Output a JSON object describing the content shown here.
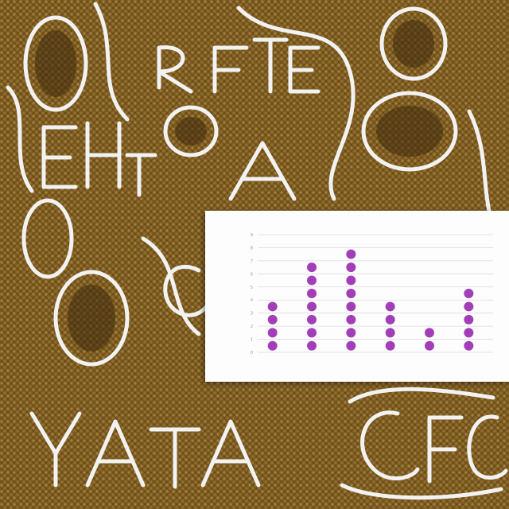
{
  "chart_data": {
    "type": "scatter",
    "style": "dot-plot",
    "title": "",
    "xlabel": "",
    "ylabel": "",
    "categories": [
      "",
      "",
      "",
      "",
      "",
      ""
    ],
    "values": [
      4,
      7,
      8,
      4,
      2,
      5
    ],
    "ylim": [
      0,
      9
    ],
    "yticks": [
      0,
      1,
      2,
      3,
      4,
      5,
      6,
      7,
      8,
      9
    ],
    "grid": true,
    "legend": "none",
    "colors": {
      "marker": "#a23fb8",
      "grid": "#dcdcdc"
    }
  },
  "background": {
    "colors": [
      "#7a5a22",
      "#a07a34",
      "#f2f2f2"
    ]
  }
}
